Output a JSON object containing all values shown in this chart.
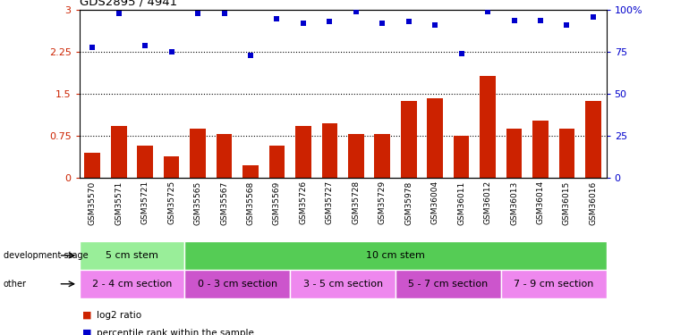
{
  "title": "GDS2895 / 4941",
  "samples": [
    "GSM35570",
    "GSM35571",
    "GSM35721",
    "GSM35725",
    "GSM35565",
    "GSM35567",
    "GSM35568",
    "GSM35569",
    "GSM35726",
    "GSM35727",
    "GSM35728",
    "GSM35729",
    "GSM35978",
    "GSM36004",
    "GSM36011",
    "GSM36012",
    "GSM36013",
    "GSM36014",
    "GSM36015",
    "GSM36016"
  ],
  "log2_ratio": [
    0.45,
    0.92,
    0.57,
    0.38,
    0.88,
    0.78,
    0.22,
    0.57,
    0.92,
    0.97,
    0.78,
    0.78,
    1.38,
    1.42,
    0.75,
    1.82,
    0.88,
    1.02,
    0.88,
    1.38
  ],
  "pct_rank": [
    78,
    98,
    79,
    75,
    98,
    98,
    73,
    95,
    92,
    93,
    99,
    92,
    93,
    91,
    74,
    99,
    94,
    94,
    91,
    96
  ],
  "ylim_left": [
    0,
    3.0
  ],
  "ylim_right": [
    0,
    100
  ],
  "yticks_left": [
    0,
    0.75,
    1.5,
    2.25,
    3.0
  ],
  "yticks_right": [
    0,
    25,
    50,
    75,
    100
  ],
  "ytick_labels_left": [
    "0",
    "0.75",
    "1.5",
    "2.25",
    "3"
  ],
  "ytick_labels_right": [
    "0",
    "25",
    "50",
    "75",
    "100%"
  ],
  "hlines": [
    0.75,
    1.5,
    2.25
  ],
  "bar_color": "#cc2200",
  "dot_color": "#0000cc",
  "dev_stage_groups": [
    {
      "label": "5 cm stem",
      "start": 0,
      "end": 4,
      "color": "#99ee99"
    },
    {
      "label": "10 cm stem",
      "start": 4,
      "end": 20,
      "color": "#55cc55"
    }
  ],
  "other_groups": [
    {
      "label": "2 - 4 cm section",
      "start": 0,
      "end": 4,
      "color": "#ee88ee"
    },
    {
      "label": "0 - 3 cm section",
      "start": 4,
      "end": 8,
      "color": "#cc55cc"
    },
    {
      "label": "3 - 5 cm section",
      "start": 8,
      "end": 12,
      "color": "#ee88ee"
    },
    {
      "label": "5 - 7 cm section",
      "start": 12,
      "end": 16,
      "color": "#cc55cc"
    },
    {
      "label": "7 - 9 cm section",
      "start": 16,
      "end": 20,
      "color": "#ee88ee"
    }
  ],
  "legend_items": [
    {
      "color": "#cc2200",
      "label": "log2 ratio"
    },
    {
      "color": "#0000cc",
      "label": "percentile rank within the sample"
    }
  ],
  "background_color": "#ffffff"
}
